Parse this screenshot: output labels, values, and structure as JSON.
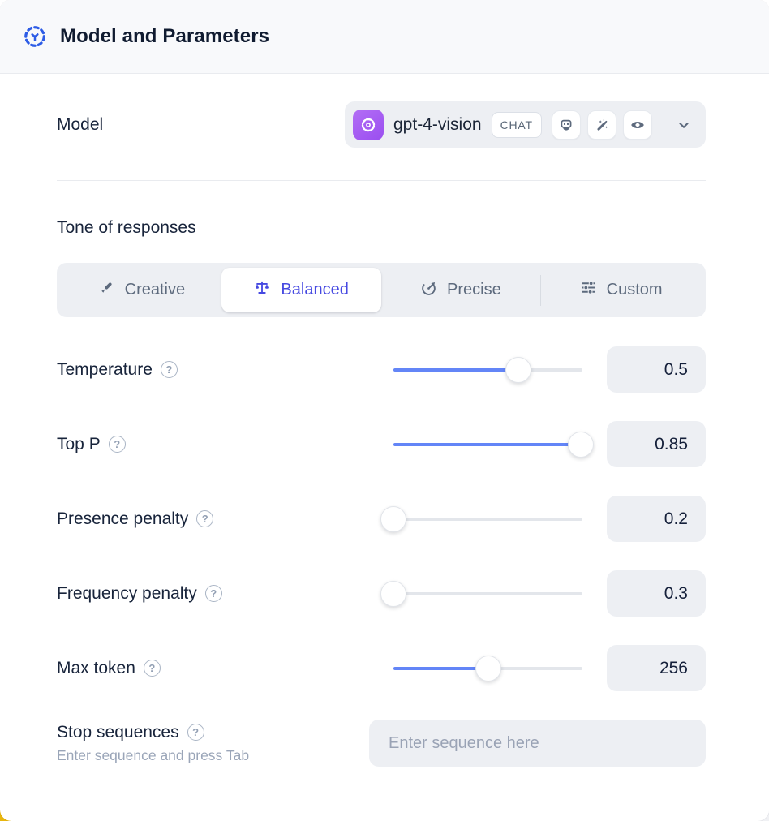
{
  "header": {
    "title": "Model and Parameters"
  },
  "model_row": {
    "label": "Model",
    "model_name": "gpt-4-vision",
    "chat_badge": "CHAT",
    "capability_icons": [
      "robot-icon",
      "magic-wand-icon",
      "vision-eye-icon"
    ]
  },
  "tone": {
    "heading": "Tone of responses",
    "options": [
      {
        "label": "Creative",
        "icon": "paintbrush-icon",
        "selected": false
      },
      {
        "label": "Balanced",
        "icon": "balance-scale-icon",
        "selected": true
      },
      {
        "label": "Precise",
        "icon": "target-dart-icon",
        "selected": false
      },
      {
        "label": "Custom",
        "icon": "sliders-icon",
        "selected": false
      }
    ]
  },
  "parameters": [
    {
      "label": "Temperature",
      "value": "0.5",
      "slider_percent": 66
    },
    {
      "label": "Top P",
      "value": "0.85",
      "slider_percent": 99
    },
    {
      "label": "Presence penalty",
      "value": "0.2",
      "slider_percent": 0
    },
    {
      "label": "Frequency penalty",
      "value": "0.3",
      "slider_percent": 0
    },
    {
      "label": "Max token",
      "value": "256",
      "slider_percent": 50
    }
  ],
  "stop_sequences": {
    "label": "Stop sequences",
    "hint": "Enter sequence and press Tab",
    "placeholder": "Enter sequence here"
  },
  "colors": {
    "accent_blue": "#6385F7",
    "selected_indigo": "#4649E1",
    "header_icon_blue": "#2D5CE6",
    "openai_purple": "#A259F7",
    "icon_slate": "#5D6A7D",
    "panel_gray": "#EDEFF3",
    "header_bg": "#F8F9FB",
    "text_dark": "#18243B"
  }
}
